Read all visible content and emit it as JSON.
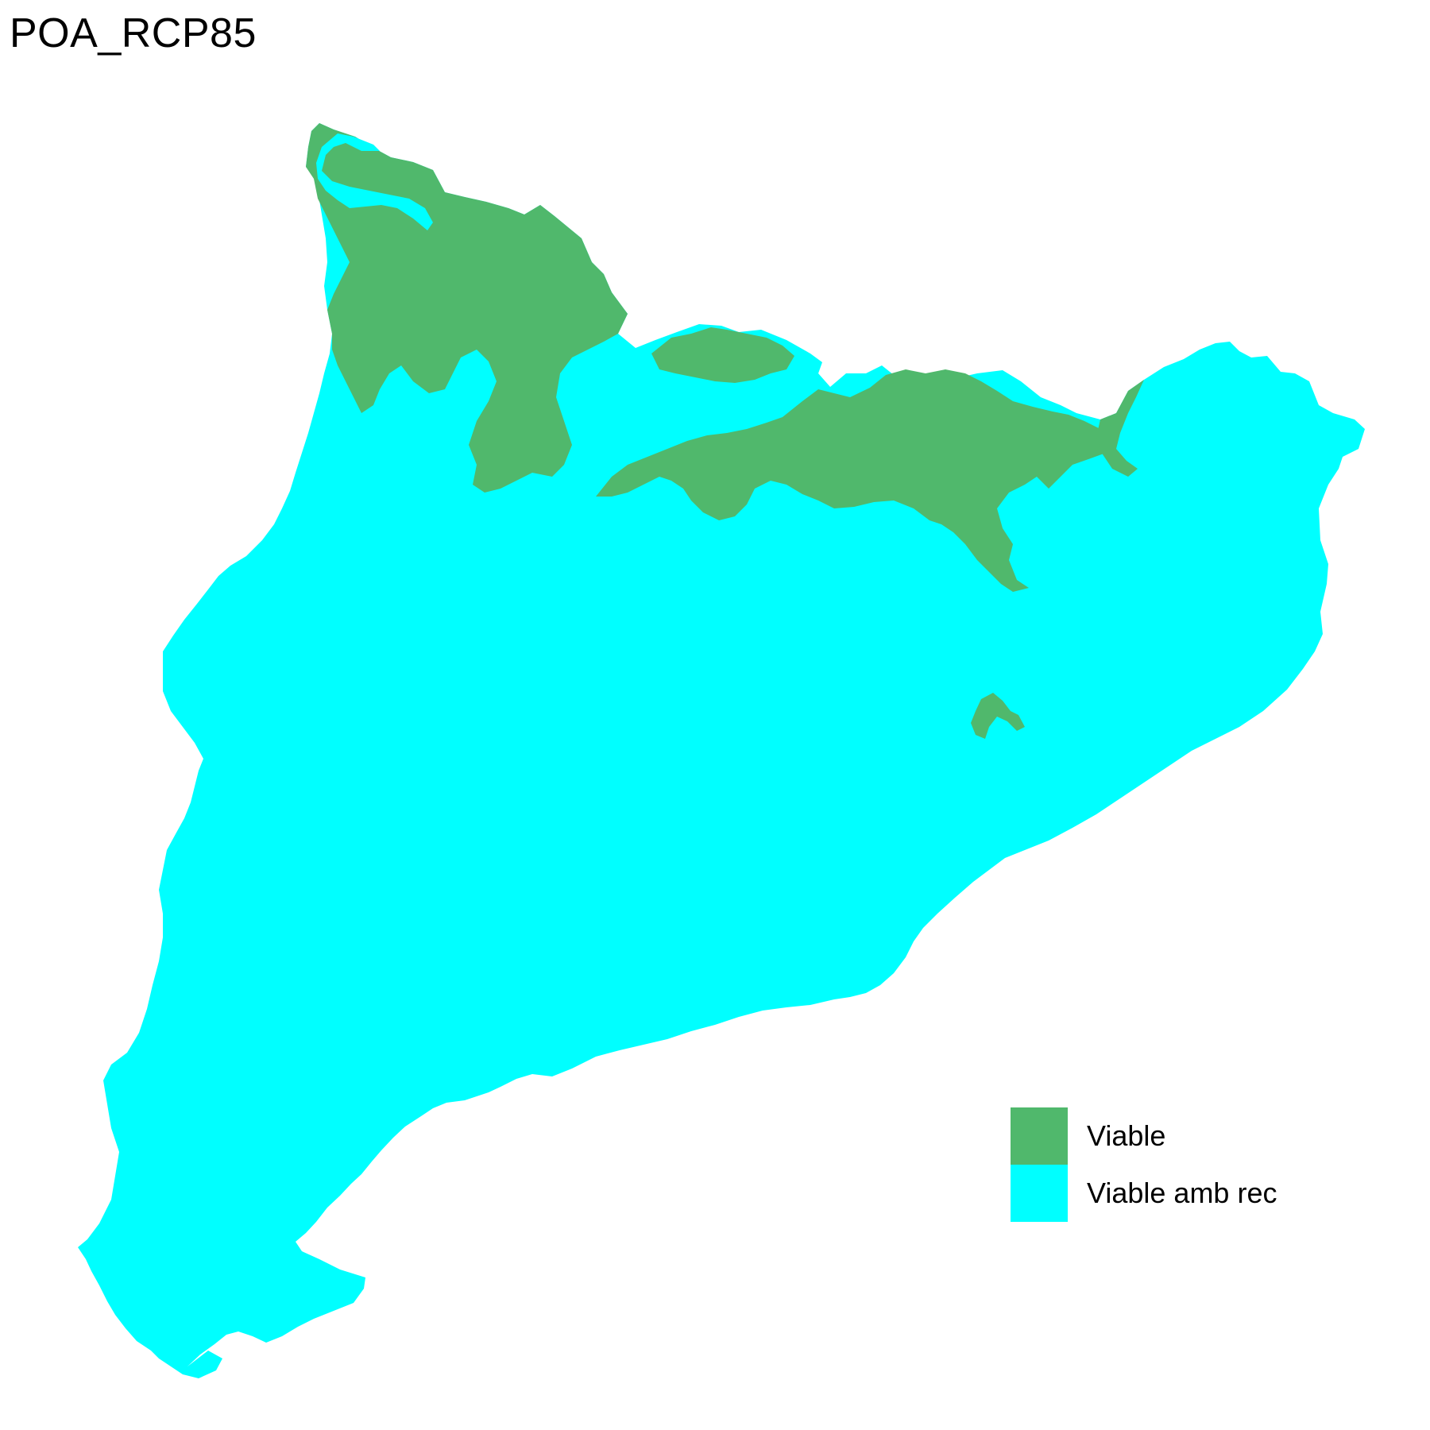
{
  "title": "POA_RCP85",
  "colors": {
    "viable": "#50b86c",
    "viable_amb_rec": "#00ffff",
    "background": "#ffffff"
  },
  "legend": {
    "items": [
      {
        "label": "Viable",
        "color": "#50b86c"
      },
      {
        "label": "Viable amb rec",
        "color": "#00ffff"
      }
    ]
  }
}
